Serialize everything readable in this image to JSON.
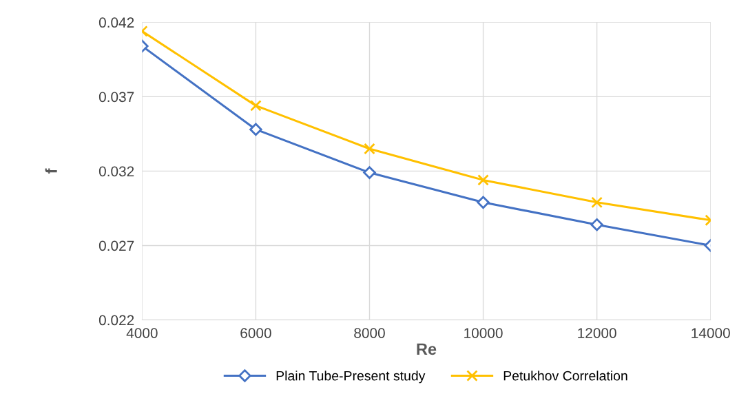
{
  "chart_data": {
    "type": "line",
    "xlabel": "Re",
    "ylabel": "f",
    "x": [
      4000,
      6000,
      8000,
      10000,
      12000,
      14000
    ],
    "series": [
      {
        "name": "Plain Tube-Present study",
        "color": "#4472c4",
        "marker": "diamond",
        "values": [
          0.0404,
          0.0348,
          0.0319,
          0.0299,
          0.0284,
          0.027
        ]
      },
      {
        "name": "Petukhov Correlation",
        "color": "#ffc000",
        "marker": "cross",
        "values": [
          0.0414,
          0.0364,
          0.0335,
          0.0314,
          0.0299,
          0.0287
        ]
      }
    ],
    "xlim": [
      4000,
      14000
    ],
    "xticks": [
      4000,
      6000,
      8000,
      10000,
      12000,
      14000
    ],
    "ylim": [
      0.022,
      0.042
    ],
    "yticks": [
      0.022,
      0.027,
      0.032,
      0.037,
      0.042
    ],
    "grid": true,
    "legend": "bottom",
    "line_style": "solid"
  }
}
